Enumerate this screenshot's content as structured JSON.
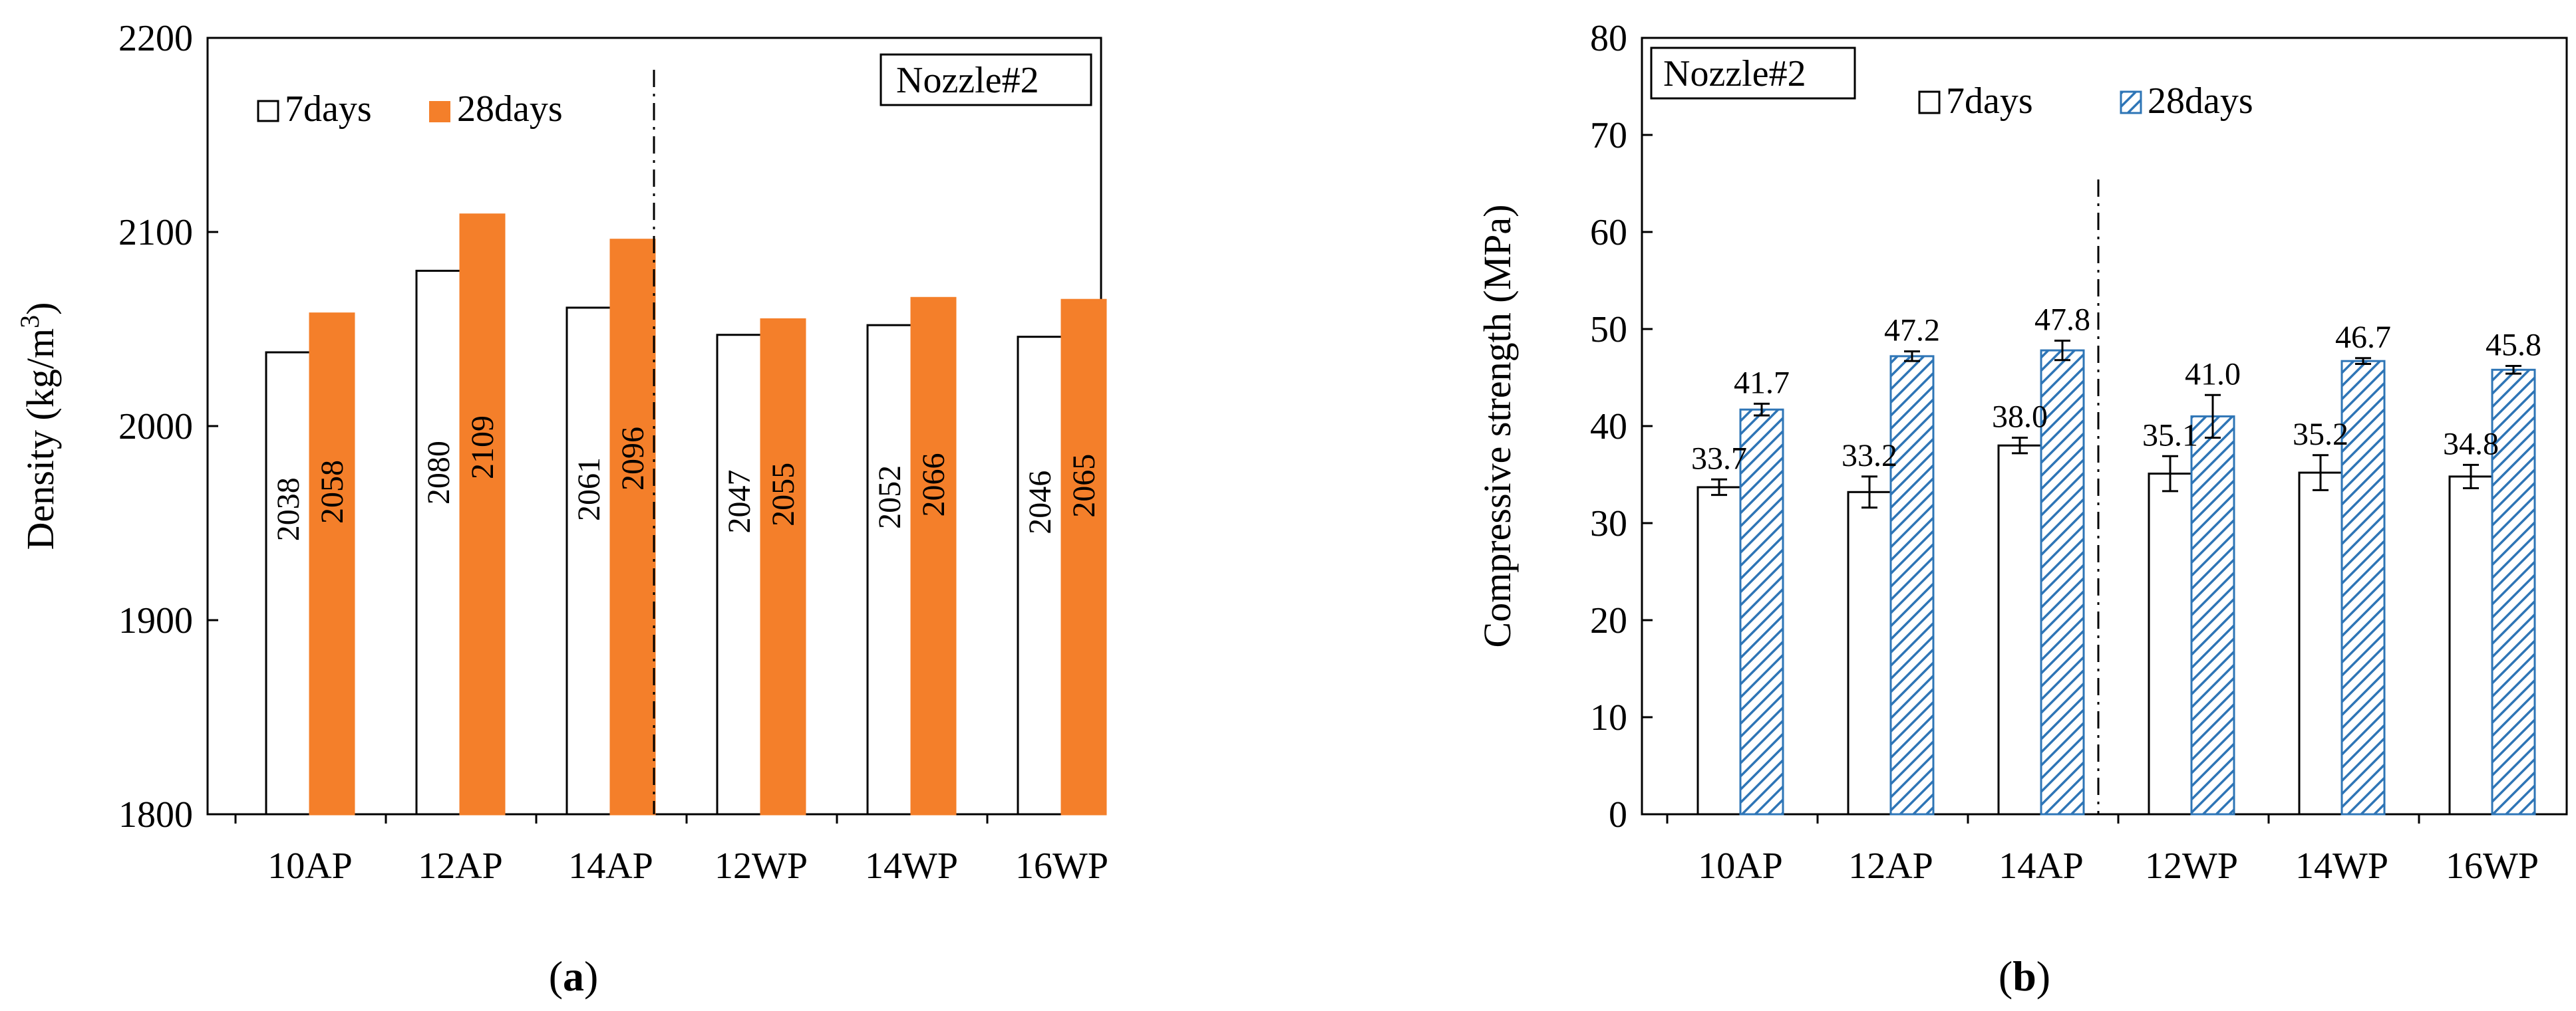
{
  "chart_data": [
    {
      "type": "bar",
      "panel_label": "(a)",
      "panel_label_parts": [
        "(",
        "a",
        ")"
      ],
      "tag": "Nozzle#2",
      "categories": [
        "10AP",
        "12AP",
        "14AP",
        "12WP",
        "14WP",
        "16WP"
      ],
      "series": [
        {
          "name": "7days",
          "values": [
            2038,
            2080,
            2061,
            2047,
            2052,
            2046
          ],
          "fill": "#ffffff",
          "stroke": "#000000"
        },
        {
          "name": "28days",
          "values": [
            2058,
            2109,
            2096,
            2055,
            2066,
            2065
          ],
          "fill": "#f47f2a",
          "stroke": "#f47f2a"
        }
      ],
      "value_labels": [
        [
          "2038",
          "2080",
          "2061",
          "2047",
          "2052",
          "2046"
        ],
        [
          "2058",
          "2109",
          "2096",
          "2055",
          "2066",
          "2065"
        ]
      ],
      "ylabel": "Density (kg/m3)",
      "ylabel_parts": {
        "base": "Density (kg/m",
        "sup": "3",
        "end": ")"
      },
      "ylim": [
        1800,
        2200
      ],
      "yticks": [
        1800,
        1900,
        2000,
        2100,
        2200
      ],
      "ytick_labels": [
        "1800",
        "1900",
        "2000",
        "2100",
        "2200"
      ],
      "separator_after_index": 2,
      "legend_position": "top-left"
    },
    {
      "type": "bar",
      "panel_label": "(b)",
      "panel_label_parts": [
        "(",
        "b",
        ")"
      ],
      "tag": "Nozzle#2",
      "categories": [
        "10AP",
        "12AP",
        "14AP",
        "12WP",
        "14WP",
        "16WP"
      ],
      "series": [
        {
          "name": "7days",
          "values": [
            33.7,
            33.2,
            38.0,
            35.1,
            35.2,
            34.8
          ],
          "errors": [
            0.8,
            1.6,
            0.8,
            1.8,
            1.8,
            1.2
          ],
          "fill": "#ffffff",
          "stroke": "#000000"
        },
        {
          "name": "28days",
          "values": [
            41.7,
            47.2,
            47.8,
            41.0,
            46.7,
            45.8
          ],
          "errors": [
            0.6,
            0.5,
            1.0,
            2.2,
            0.3,
            0.4
          ],
          "fill": "hatched",
          "stroke": "#2e75b6"
        }
      ],
      "value_labels": [
        [
          "33.7",
          "33.2",
          "38.0",
          "35.1",
          "35.2",
          "34.8"
        ],
        [
          "41.7",
          "47.2",
          "47.8",
          "41.0",
          "46.7",
          "45.8"
        ]
      ],
      "ylabel": "Compressive strength (MPa)",
      "ylim": [
        0,
        80
      ],
      "yticks": [
        0,
        10,
        20,
        30,
        40,
        50,
        60,
        70,
        80
      ],
      "ytick_labels": [
        "0",
        "10",
        "20",
        "30",
        "40",
        "50",
        "60",
        "70",
        "80"
      ],
      "separator_after_index": 2,
      "legend_position": "top-center"
    }
  ]
}
